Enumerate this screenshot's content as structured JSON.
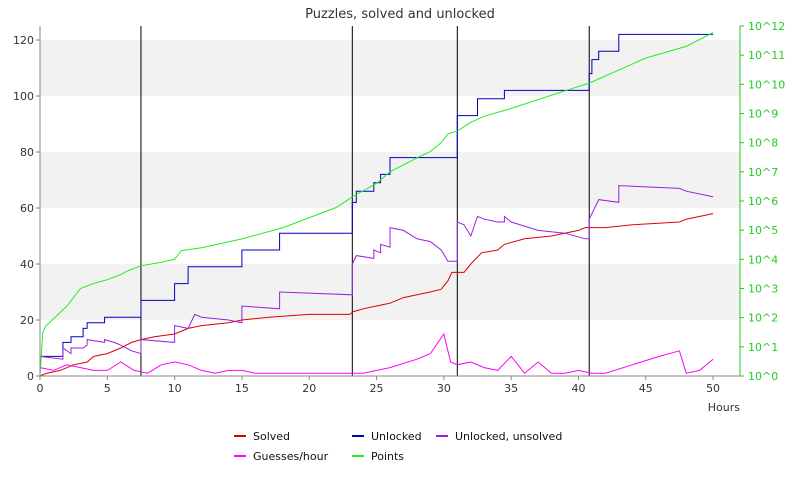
{
  "chart_data": {
    "type": "line",
    "title": "Puzzles, solved and unlocked",
    "xlabel": "Hours",
    "ylabel": "",
    "xlim": [
      0,
      52
    ],
    "ylim": [
      0,
      125
    ],
    "y2_scale": "log",
    "y2lim": [
      1,
      1000000000000.0
    ],
    "x_ticks": [
      "0",
      "5",
      "10",
      "15",
      "20",
      "25",
      "30",
      "35",
      "40",
      "45",
      "50"
    ],
    "y_ticks": [
      "0",
      "20",
      "40",
      "60",
      "80",
      "100",
      "120"
    ],
    "y2_ticks": [
      "10^0",
      "10^1",
      "10^2",
      "10^3",
      "10^4",
      "10^5",
      "10^6",
      "10^7",
      "10^8",
      "10^9",
      "10^10",
      "10^11",
      "10^12"
    ],
    "grid": "alternating horizontal bands",
    "vertical_markers": [
      7.5,
      23.2,
      31.0,
      40.8
    ],
    "legend_position": "bottom",
    "colors": {
      "solved": "#dd0000",
      "unlocked": "#0000bb",
      "unlocked_unsolved": "#9922dd",
      "guesses": "#ff00ff",
      "points": "#22ee22",
      "band": "#f2f2f2",
      "marker": "#000000",
      "axis2": "#22cc22"
    },
    "series": [
      {
        "name": "Solved",
        "key": "solved",
        "axis": "left",
        "points": [
          [
            0,
            0
          ],
          [
            0.5,
            1
          ],
          [
            1.5,
            2
          ],
          [
            2.5,
            4
          ],
          [
            3.5,
            5
          ],
          [
            4,
            7
          ],
          [
            5,
            8
          ],
          [
            6,
            10
          ],
          [
            6.8,
            12
          ],
          [
            7.5,
            13
          ],
          [
            8.5,
            14
          ],
          [
            10,
            15
          ],
          [
            11,
            17
          ],
          [
            12,
            18
          ],
          [
            14,
            19
          ],
          [
            15,
            20
          ],
          [
            17,
            21
          ],
          [
            20,
            22
          ],
          [
            23,
            22
          ],
          [
            23.3,
            23
          ],
          [
            24,
            24
          ],
          [
            25,
            25
          ],
          [
            26,
            26
          ],
          [
            27,
            28
          ],
          [
            28,
            29
          ],
          [
            29,
            30
          ],
          [
            29.8,
            31
          ],
          [
            30.3,
            34
          ],
          [
            30.6,
            37
          ],
          [
            31.5,
            37
          ],
          [
            32,
            40
          ],
          [
            32.8,
            44
          ],
          [
            34,
            45
          ],
          [
            34.5,
            47
          ],
          [
            36,
            49
          ],
          [
            38,
            50
          ],
          [
            40,
            52
          ],
          [
            40.5,
            53
          ],
          [
            42,
            53
          ],
          [
            44,
            54
          ],
          [
            47.5,
            55
          ],
          [
            48,
            56
          ],
          [
            50,
            58
          ]
        ]
      },
      {
        "name": "Unlocked",
        "key": "unlocked",
        "axis": "left",
        "step": true,
        "points": [
          [
            0,
            7
          ],
          [
            1.7,
            7
          ],
          [
            1.7,
            12
          ],
          [
            2.3,
            12
          ],
          [
            2.3,
            14
          ],
          [
            3.2,
            14
          ],
          [
            3.2,
            17
          ],
          [
            3.5,
            17
          ],
          [
            3.5,
            19
          ],
          [
            4.8,
            19
          ],
          [
            4.8,
            21
          ],
          [
            7.5,
            21
          ],
          [
            7.5,
            27
          ],
          [
            10,
            27
          ],
          [
            10,
            33
          ],
          [
            11,
            33
          ],
          [
            11,
            39
          ],
          [
            15,
            39
          ],
          [
            15,
            45
          ],
          [
            17.8,
            45
          ],
          [
            17.8,
            51
          ],
          [
            23.2,
            51
          ],
          [
            23.2,
            62
          ],
          [
            23.5,
            62
          ],
          [
            23.5,
            66
          ],
          [
            24.8,
            66
          ],
          [
            24.8,
            69
          ],
          [
            25.3,
            69
          ],
          [
            25.3,
            72
          ],
          [
            26,
            72
          ],
          [
            26,
            78
          ],
          [
            31,
            78
          ],
          [
            31,
            93
          ],
          [
            32.5,
            93
          ],
          [
            32.5,
            99
          ],
          [
            34.5,
            99
          ],
          [
            34.5,
            102
          ],
          [
            40.8,
            102
          ],
          [
            40.8,
            108
          ],
          [
            41,
            108
          ],
          [
            41,
            113
          ],
          [
            41.5,
            113
          ],
          [
            41.5,
            116
          ],
          [
            43,
            116
          ],
          [
            43,
            122
          ],
          [
            50,
            122
          ]
        ]
      },
      {
        "name": "Unlocked, unsolved",
        "key": "unlocked_unsolved",
        "axis": "left",
        "points": [
          [
            0,
            7
          ],
          [
            1.7,
            6
          ],
          [
            1.7,
            10
          ],
          [
            2.3,
            8
          ],
          [
            2.3,
            10
          ],
          [
            3.2,
            10
          ],
          [
            3.5,
            11
          ],
          [
            3.5,
            13
          ],
          [
            4.8,
            12
          ],
          [
            4.8,
            13
          ],
          [
            5.5,
            12
          ],
          [
            6,
            11
          ],
          [
            6.8,
            9
          ],
          [
            7.5,
            8
          ],
          [
            7.5,
            13
          ],
          [
            10,
            12
          ],
          [
            10,
            18
          ],
          [
            11,
            17
          ],
          [
            11.5,
            22
          ],
          [
            12,
            21
          ],
          [
            14,
            20
          ],
          [
            15,
            19
          ],
          [
            15,
            25
          ],
          [
            17.8,
            24
          ],
          [
            17.8,
            30
          ],
          [
            23.2,
            29
          ],
          [
            23.2,
            40
          ],
          [
            23.5,
            43
          ],
          [
            24.8,
            42
          ],
          [
            24.8,
            45
          ],
          [
            25.3,
            44
          ],
          [
            25.3,
            47
          ],
          [
            26,
            46
          ],
          [
            26,
            53
          ],
          [
            27,
            52
          ],
          [
            28,
            49
          ],
          [
            29,
            48
          ],
          [
            29.8,
            45
          ],
          [
            30.3,
            41
          ],
          [
            31,
            41
          ],
          [
            31,
            55
          ],
          [
            31.5,
            54
          ],
          [
            32,
            50
          ],
          [
            32.5,
            57
          ],
          [
            33,
            56
          ],
          [
            34,
            55
          ],
          [
            34.5,
            55
          ],
          [
            34.5,
            57
          ],
          [
            35,
            55
          ],
          [
            37,
            52
          ],
          [
            39,
            51
          ],
          [
            40.5,
            49
          ],
          [
            40.8,
            49
          ],
          [
            40.8,
            56
          ],
          [
            41.5,
            63
          ],
          [
            43,
            62
          ],
          [
            43,
            68
          ],
          [
            47.5,
            67
          ],
          [
            48,
            66
          ],
          [
            50,
            64
          ]
        ]
      },
      {
        "name": "Guesses/hour",
        "key": "guesses",
        "axis": "left",
        "points": [
          [
            0,
            3
          ],
          [
            1,
            2
          ],
          [
            2,
            4
          ],
          [
            3,
            3
          ],
          [
            4,
            2
          ],
          [
            5,
            2
          ],
          [
            6,
            5
          ],
          [
            7,
            2
          ],
          [
            8,
            1
          ],
          [
            9,
            4
          ],
          [
            10,
            5
          ],
          [
            11,
            4
          ],
          [
            12,
            2
          ],
          [
            13,
            1
          ],
          [
            14,
            2
          ],
          [
            15,
            2
          ],
          [
            16,
            1
          ],
          [
            20,
            1
          ],
          [
            24,
            1
          ],
          [
            26,
            3
          ],
          [
            28,
            6
          ],
          [
            29,
            8
          ],
          [
            30,
            15
          ],
          [
            30.5,
            5
          ],
          [
            31,
            4
          ],
          [
            32,
            5
          ],
          [
            33,
            3
          ],
          [
            34,
            2
          ],
          [
            35,
            7
          ],
          [
            36,
            1
          ],
          [
            37,
            5
          ],
          [
            38,
            1
          ],
          [
            39,
            1
          ],
          [
            40,
            2
          ],
          [
            41,
            1
          ],
          [
            42,
            1
          ],
          [
            44,
            4
          ],
          [
            46,
            7
          ],
          [
            47.5,
            9
          ],
          [
            48,
            1
          ],
          [
            49,
            2
          ],
          [
            50,
            6
          ]
        ]
      },
      {
        "name": "Points",
        "key": "points",
        "axis": "right",
        "points": [
          [
            0,
            1
          ],
          [
            0.2,
            30.0
          ],
          [
            0.4,
            50.0
          ],
          [
            1.5,
            150.0
          ],
          [
            2,
            250.0
          ],
          [
            2.5,
            500.0
          ],
          [
            3,
            1000.0
          ],
          [
            4,
            1500.0
          ],
          [
            5,
            2000.0
          ],
          [
            6,
            3000.0
          ],
          [
            6.5,
            4000.0
          ],
          [
            7.5,
            6000.0
          ],
          [
            9,
            8000.0
          ],
          [
            10,
            10000.0
          ],
          [
            10.5,
            20000.0
          ],
          [
            12,
            25000.0
          ],
          [
            15,
            50000.0
          ],
          [
            18,
            120000.0
          ],
          [
            22,
            600000.0
          ],
          [
            23,
            1200000.0
          ],
          [
            23.3,
            1500000.0
          ],
          [
            25,
            4000000.0
          ],
          [
            26,
            10000000.0
          ],
          [
            28,
            30000000.0
          ],
          [
            29,
            50000000.0
          ],
          [
            29.8,
            100000000.0
          ],
          [
            30.3,
            200000000.0
          ],
          [
            31,
            250000000.0
          ],
          [
            32,
            500000000.0
          ],
          [
            33,
            800000000.0
          ],
          [
            35,
            1500000000.0
          ],
          [
            37,
            3000000000.0
          ],
          [
            39,
            6000000000.0
          ],
          [
            40.8,
            11000000000.0
          ],
          [
            41,
            12000000000.0
          ],
          [
            45,
            80000000000.0
          ],
          [
            48,
            200000000000.0
          ],
          [
            50,
            600000000000.0
          ]
        ]
      }
    ]
  }
}
